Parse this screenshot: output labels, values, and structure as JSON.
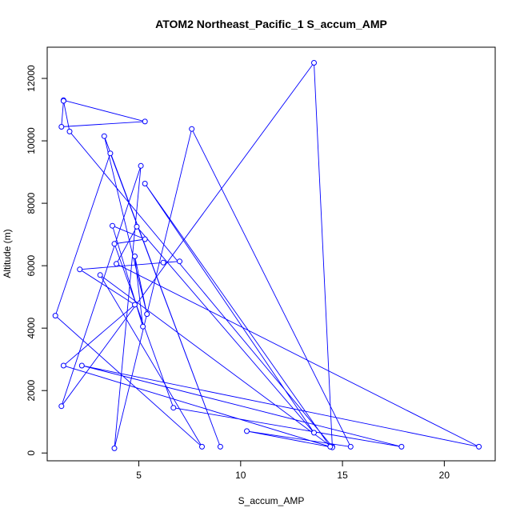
{
  "chart_data": {
    "type": "line",
    "title": "ATOM2 Northeast_Pacific_1 S_accum_AMP",
    "xlabel": "S_accum_AMP",
    "ylabel": "Altitude (m)",
    "xlim": [
      0.5,
      22.5
    ],
    "ylim": [
      -250,
      13000
    ],
    "xticks": [
      5,
      10,
      15,
      20
    ],
    "yticks": [
      0,
      2000,
      4000,
      6000,
      8000,
      10000,
      12000
    ],
    "grid": false,
    "marker": "open-circle",
    "line_color": "#0000ff",
    "points": [
      {
        "x": 1.3,
        "y": 11300
      },
      {
        "x": 5.3,
        "y": 10620
      },
      {
        "x": 1.2,
        "y": 10450
      },
      {
        "x": 1.3,
        "y": 11280
      },
      {
        "x": 1.6,
        "y": 10300
      },
      {
        "x": 14.5,
        "y": 200
      },
      {
        "x": 13.6,
        "y": 12500
      },
      {
        "x": 1.2,
        "y": 1500
      },
      {
        "x": 5.1,
        "y": 9200
      },
      {
        "x": 3.8,
        "y": 150
      },
      {
        "x": 7.6,
        "y": 10380
      },
      {
        "x": 15.4,
        "y": 200
      },
      {
        "x": 10.3,
        "y": 700
      },
      {
        "x": 14.5,
        "y": 180
      },
      {
        "x": 3.1,
        "y": 5700
      },
      {
        "x": 8.1,
        "y": 200
      },
      {
        "x": 0.9,
        "y": 4400
      },
      {
        "x": 3.6,
        "y": 9600
      },
      {
        "x": 9.0,
        "y": 200
      },
      {
        "x": 3.3,
        "y": 10150
      },
      {
        "x": 5.4,
        "y": 4450
      },
      {
        "x": 4.8,
        "y": 6300
      },
      {
        "x": 5.2,
        "y": 4050
      },
      {
        "x": 3.7,
        "y": 7280
      },
      {
        "x": 5.3,
        "y": 6850
      },
      {
        "x": 3.8,
        "y": 6700
      },
      {
        "x": 6.7,
        "y": 1450
      },
      {
        "x": 17.9,
        "y": 200
      },
      {
        "x": 2.2,
        "y": 2800
      },
      {
        "x": 21.7,
        "y": 200
      },
      {
        "x": 3.9,
        "y": 6060
      },
      {
        "x": 4.9,
        "y": 7250
      },
      {
        "x": 13.6,
        "y": 650
      },
      {
        "x": 5.3,
        "y": 8630
      },
      {
        "x": 14.4,
        "y": 200
      },
      {
        "x": 1.3,
        "y": 2800
      },
      {
        "x": 4.8,
        "y": 4750
      },
      {
        "x": 2.1,
        "y": 5880
      },
      {
        "x": 7.0,
        "y": 6140
      },
      {
        "x": 6.2,
        "y": 6100
      }
    ]
  }
}
